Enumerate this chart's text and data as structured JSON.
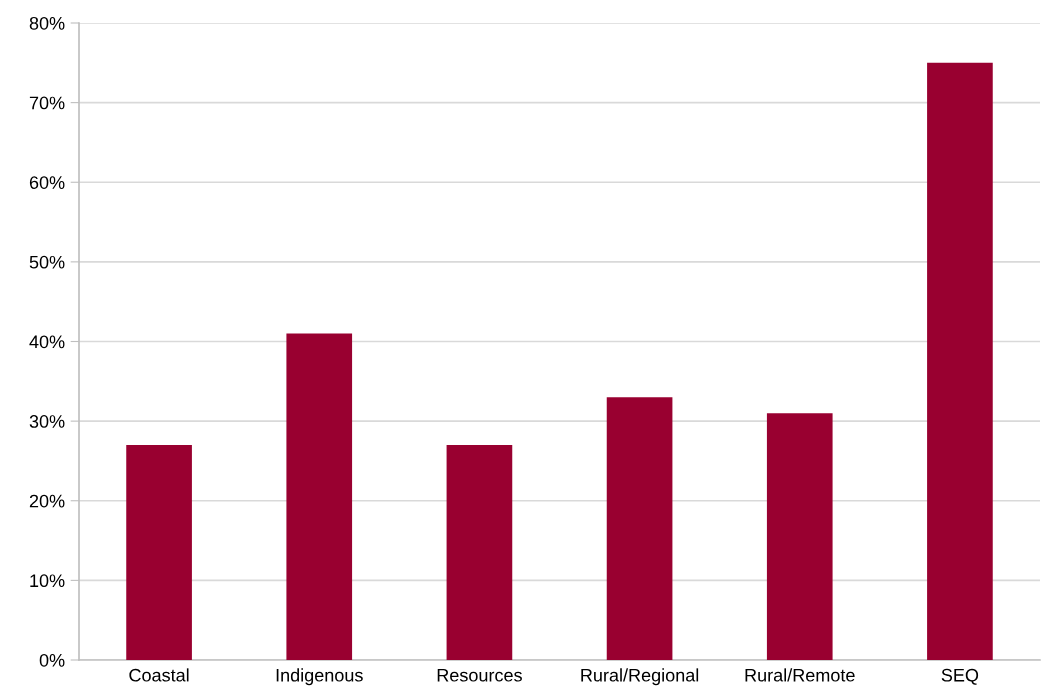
{
  "chart_data": {
    "type": "bar",
    "categories": [
      "Coastal",
      "Indigenous",
      "Resources",
      "Rural/Regional",
      "Rural/Remote",
      "SEQ"
    ],
    "values": [
      27,
      41,
      27,
      33,
      31,
      75
    ],
    "color": "#990030",
    "ylim": [
      0,
      80
    ],
    "yticks": [
      {
        "value": 0,
        "label": "0%"
      },
      {
        "value": 10,
        "label": "10%"
      },
      {
        "value": 20,
        "label": "20%"
      },
      {
        "value": 30,
        "label": "30%"
      },
      {
        "value": 40,
        "label": "40%"
      },
      {
        "value": 50,
        "label": "50%"
      },
      {
        "value": 60,
        "label": "60%"
      },
      {
        "value": 70,
        "label": "70%"
      },
      {
        "value": 80,
        "label": "80%"
      }
    ],
    "grid": "y",
    "legend": false
  }
}
